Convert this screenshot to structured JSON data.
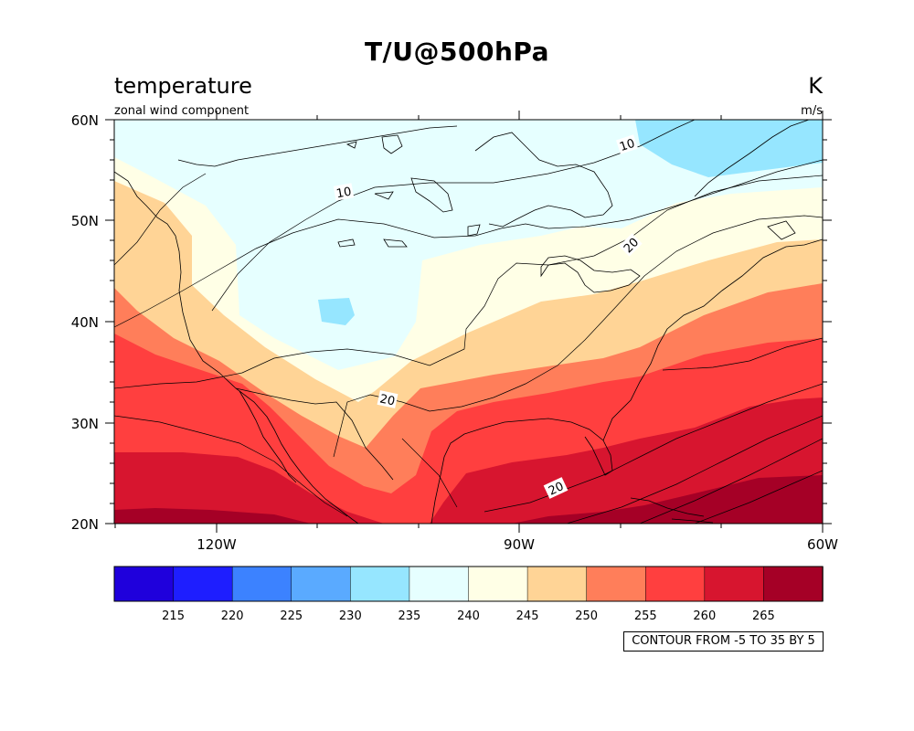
{
  "title": "T/U@500hPa",
  "left_string": "temperature",
  "left_substring": "zonal wind component",
  "right_string": "K",
  "right_substring": "m/s",
  "lat_labels": [
    "60N",
    "50N",
    "40N",
    "30N",
    "20N"
  ],
  "lon_labels": [
    "120W",
    "90W",
    "60W"
  ],
  "colorbar": {
    "labels": [
      "215",
      "220",
      "225",
      "230",
      "235",
      "240",
      "245",
      "250",
      "255",
      "260",
      "265"
    ],
    "colors": [
      "#1f00dc",
      "#1e1eff",
      "#3c82ff",
      "#5aaaff",
      "#96e6ff",
      "#e6ffff",
      "#ffffe6",
      "#ffd496",
      "#ff7e5a",
      "#ff3f3f",
      "#d7152f",
      "#a50026"
    ]
  },
  "contour_labels": [
    "10",
    "10",
    "20",
    "20",
    "20"
  ],
  "contour_info": "CONTOUR FROM -5 TO 35 BY 5"
}
